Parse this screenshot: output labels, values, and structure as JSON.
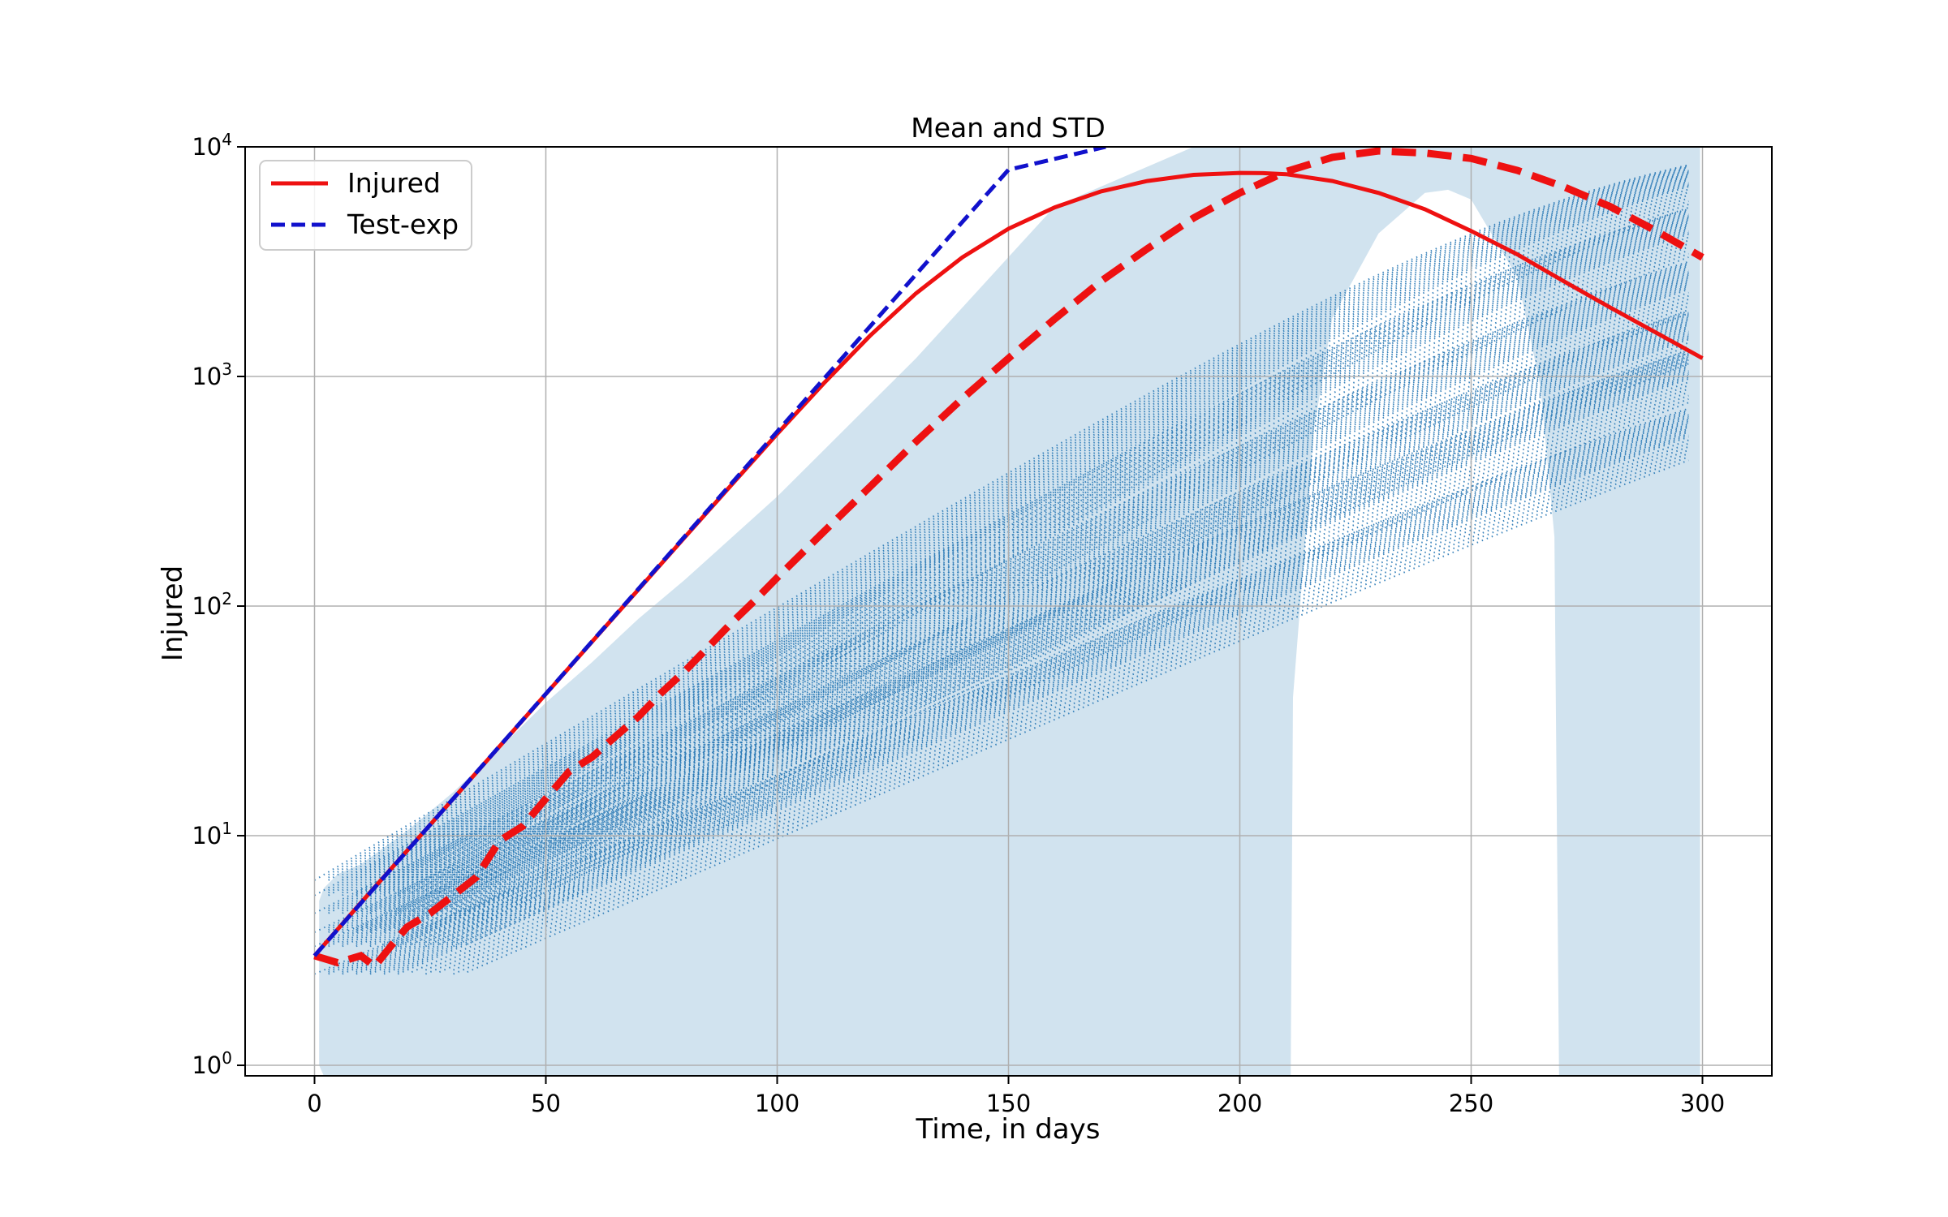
{
  "chart_data": {
    "type": "line",
    "title": "Mean and STD",
    "xlabel": "Time, in days",
    "ylabel": "Injured",
    "xlim": [
      -15,
      315
    ],
    "ylim": [
      0.9,
      10000
    ],
    "y_scale": "log",
    "grid": true,
    "legend_position": "top-left",
    "x_ticks": [
      0,
      50,
      100,
      150,
      200,
      250,
      300
    ],
    "y_ticks": [
      {
        "value": 1,
        "base": "10",
        "exp": "0"
      },
      {
        "value": 10,
        "base": "10",
        "exp": "1"
      },
      {
        "value": 100,
        "base": "10",
        "exp": "2"
      },
      {
        "value": 1000,
        "base": "10",
        "exp": "3"
      },
      {
        "value": 10000,
        "base": "10",
        "exp": "4"
      }
    ],
    "colors": {
      "injured": "#ee1111",
      "test_exp": "#1111cc",
      "band": "#d1e3ef",
      "samples": "#2878b5"
    },
    "series": [
      {
        "name": "Injured",
        "style": "solid",
        "x": [
          0,
          10,
          20,
          30,
          40,
          50,
          60,
          70,
          80,
          90,
          100,
          110,
          120,
          130,
          140,
          150,
          160,
          170,
          180,
          190,
          200,
          205,
          210,
          220,
          230,
          240,
          250,
          260,
          270,
          280,
          290,
          300
        ],
        "y": [
          3,
          5.1,
          8.6,
          14.5,
          24.5,
          41.4,
          70,
          118,
          199,
          335,
          562,
          930,
          1500,
          2300,
          3300,
          4400,
          5450,
          6400,
          7100,
          7550,
          7700,
          7680,
          7600,
          7100,
          6300,
          5350,
          4300,
          3400,
          2600,
          2000,
          1550,
          1200
        ]
      },
      {
        "name": "Test-exp",
        "style": "dashed",
        "x": [
          0,
          50,
          100,
          150,
          171
        ],
        "y": [
          3,
          41.5,
          575,
          7950,
          10000
        ]
      },
      {
        "name": "",
        "style": "thick-dashed",
        "x": [
          0,
          5,
          10,
          13,
          17,
          20,
          25,
          30,
          35,
          40,
          45,
          50,
          55,
          60,
          65,
          70,
          75,
          80,
          85,
          90,
          95,
          100,
          110,
          120,
          130,
          140,
          150,
          160,
          170,
          180,
          190,
          200,
          210,
          220,
          230,
          240,
          250,
          260,
          270,
          280,
          290,
          300
        ],
        "y": [
          3,
          2.8,
          3,
          2.7,
          3.4,
          4,
          4.6,
          5.5,
          6.6,
          9.5,
          11,
          14.5,
          19,
          22,
          27,
          33,
          42,
          52,
          66,
          84,
          105,
          133,
          210,
          330,
          520,
          800,
          1200,
          1780,
          2600,
          3600,
          4900,
          6300,
          7800,
          9000,
          9600,
          9400,
          8900,
          7900,
          6700,
          5500,
          4300,
          3300
        ]
      }
    ],
    "std_band": {
      "x": [
        1,
        2,
        5,
        10,
        20,
        30,
        40,
        50,
        60,
        70,
        80,
        100,
        130,
        160,
        190,
        200,
        205,
        210,
        211,
        211.5,
        216,
        220,
        230,
        240,
        245,
        250,
        260,
        265,
        268,
        269,
        269.5,
        280,
        290,
        299.5
      ],
      "y_upper": [
        5.2,
        5.9,
        6.8,
        7.5,
        10.5,
        15.5,
        24,
        38,
        57,
        88,
        130,
        300,
        1200,
        5500,
        10000,
        10000,
        10000,
        10000,
        10000,
        10000,
        10000,
        10000,
        10000,
        10000,
        10000,
        10000,
        10000,
        10000,
        10000,
        10000,
        10000,
        10000,
        10000,
        10000
      ],
      "y_lower": [
        1,
        0.9,
        0.9,
        0.9,
        0.9,
        0.9,
        0.9,
        0.9,
        0.9,
        0.9,
        0.9,
        0.9,
        0.9,
        0.9,
        0.9,
        0.9,
        0.9,
        0.9,
        0.9,
        40,
        580,
        1800,
        4200,
        6300,
        6500,
        5900,
        2700,
        900,
        200,
        0.9,
        0.9,
        0.9,
        0.9,
        0.9
      ]
    },
    "sample_runs": [
      {
        "a": 115,
        "b": 2.5,
        "c": 1200,
        "w": 60
      },
      {
        "a": 108,
        "b": 3.3,
        "c": 1300,
        "w": 62
      },
      {
        "a": 103,
        "b": 3.8,
        "c": 1500,
        "w": 64
      },
      {
        "a": 97,
        "b": 4.6,
        "c": 1700,
        "w": 66
      },
      {
        "a": 90,
        "b": 5.5,
        "c": 1900,
        "w": 70
      },
      {
        "a": 84,
        "b": 6.4,
        "c": 2100,
        "w": 74
      }
    ],
    "sample_offsets": [
      0,
      1,
      2,
      3,
      4,
      5,
      6,
      7,
      8,
      9,
      10,
      11,
      12,
      13,
      14,
      15,
      16,
      17,
      18,
      20,
      22,
      24,
      26,
      28,
      30,
      32
    ]
  }
}
